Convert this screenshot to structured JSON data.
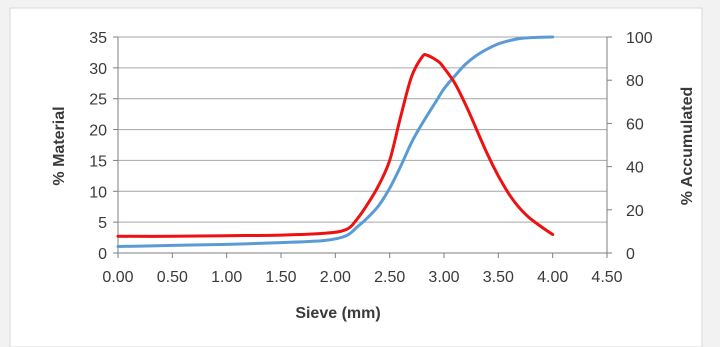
{
  "chart_data": {
    "type": "line",
    "xlabel": "Sieve (mm)",
    "ylabel_left": "% Material",
    "ylabel_right": "% Accumulated",
    "xlim": [
      0,
      4.5
    ],
    "ylim_left": [
      0,
      35
    ],
    "ylim_right": [
      0,
      100
    ],
    "x_ticks": [
      "0.00",
      "0.50",
      "1.00",
      "1.50",
      "2.00",
      "2.50",
      "3.00",
      "3.50",
      "4.00",
      "4.50"
    ],
    "y_left_ticks": [
      "0",
      "5",
      "10",
      "15",
      "20",
      "25",
      "30",
      "35"
    ],
    "y_right_ticks": [
      "0",
      "20",
      "40",
      "60",
      "80",
      "100"
    ],
    "grid": "horizontal",
    "legend": "none",
    "series": [
      {
        "axis": "left",
        "color": "#ee1111",
        "points": [
          [
            0.0,
            2.7
          ],
          [
            0.5,
            2.7
          ],
          [
            1.0,
            2.8
          ],
          [
            1.5,
            2.9
          ],
          [
            1.9,
            3.2
          ],
          [
            2.1,
            3.8
          ],
          [
            2.2,
            5.5
          ],
          [
            2.3,
            8.0
          ],
          [
            2.4,
            11.0
          ],
          [
            2.5,
            15.0
          ],
          [
            2.6,
            22.0
          ],
          [
            2.7,
            28.5
          ],
          [
            2.8,
            31.8
          ],
          [
            2.85,
            32.0
          ],
          [
            2.95,
            31.0
          ],
          [
            3.0,
            30.0
          ],
          [
            3.1,
            27.5
          ],
          [
            3.2,
            24.0
          ],
          [
            3.3,
            20.0
          ],
          [
            3.4,
            16.0
          ],
          [
            3.5,
            12.5
          ],
          [
            3.6,
            9.5
          ],
          [
            3.7,
            7.2
          ],
          [
            3.8,
            5.5
          ],
          [
            3.9,
            4.2
          ],
          [
            4.0,
            3.0
          ]
        ]
      },
      {
        "axis": "right",
        "color": "#5b9bd5",
        "points": [
          [
            0.0,
            3.0
          ],
          [
            0.5,
            3.5
          ],
          [
            1.0,
            4.0
          ],
          [
            1.5,
            4.8
          ],
          [
            1.9,
            5.8
          ],
          [
            2.1,
            8.0
          ],
          [
            2.2,
            12.0
          ],
          [
            2.3,
            16.5
          ],
          [
            2.4,
            22.0
          ],
          [
            2.5,
            30.0
          ],
          [
            2.6,
            40.0
          ],
          [
            2.7,
            51.0
          ],
          [
            2.8,
            60.0
          ],
          [
            2.9,
            68.0
          ],
          [
            3.0,
            76.0
          ],
          [
            3.1,
            82.0
          ],
          [
            3.2,
            87.5
          ],
          [
            3.3,
            91.5
          ],
          [
            3.4,
            94.5
          ],
          [
            3.5,
            96.8
          ],
          [
            3.6,
            98.3
          ],
          [
            3.7,
            99.3
          ],
          [
            3.8,
            99.7
          ],
          [
            4.0,
            100.0
          ]
        ]
      }
    ]
  }
}
